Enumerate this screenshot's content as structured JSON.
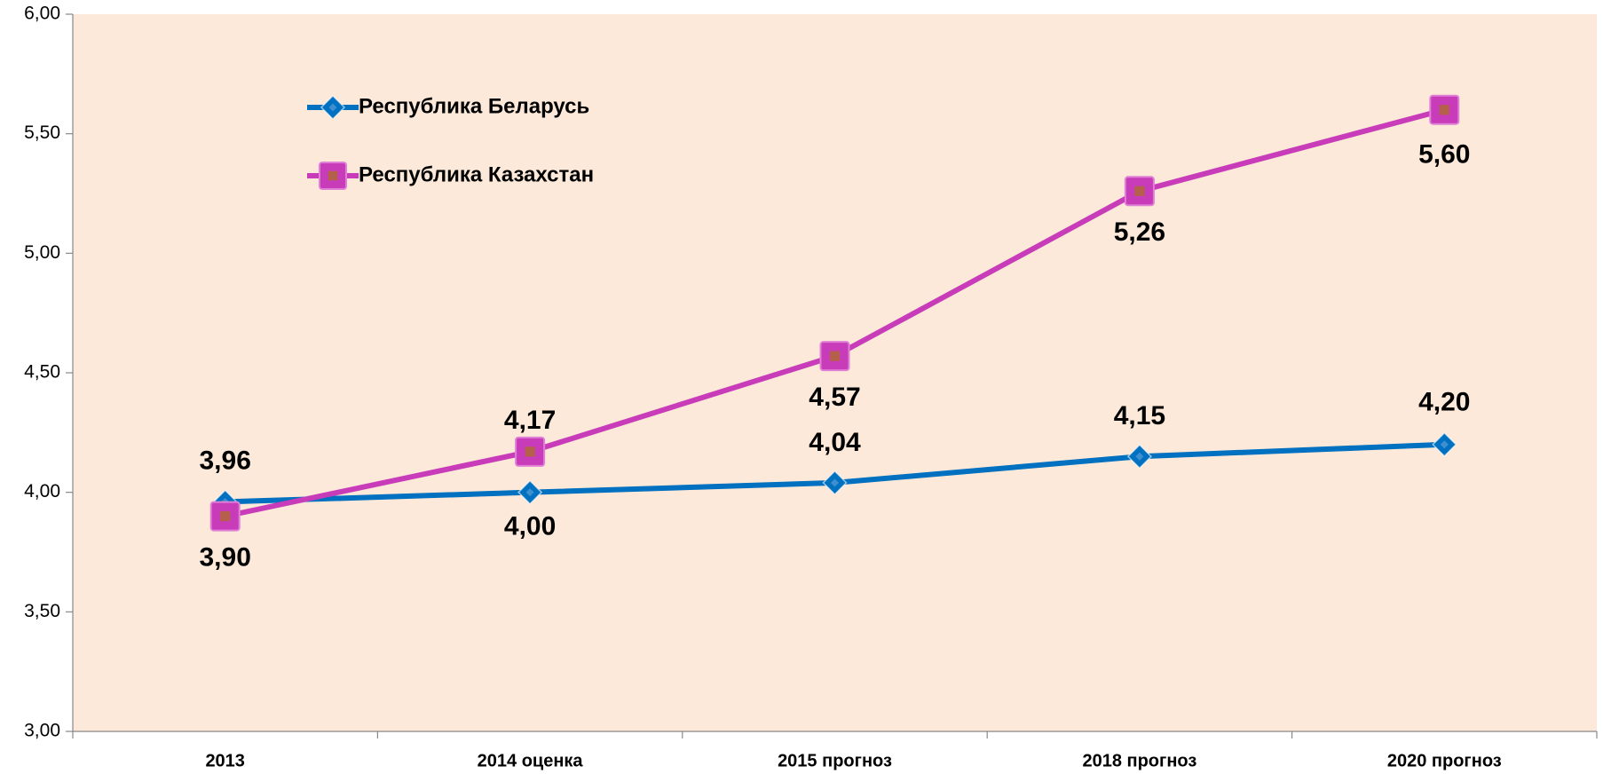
{
  "chart_data": {
    "type": "line",
    "categories": [
      "2013",
      "2014 оценка",
      "2015 прогноз",
      "2018 прогноз",
      "2020 прогноз"
    ],
    "series": [
      {
        "name": "Республика Беларусь",
        "color": "#0070c0",
        "marker": "diamond",
        "values": [
          3.96,
          4.0,
          4.04,
          4.15,
          4.2
        ],
        "value_labels": [
          "3,96",
          "4,00",
          "4,04",
          "4,15",
          "4,20"
        ]
      },
      {
        "name": "Республика Казахстан",
        "color": "#c83cb9",
        "marker": "square",
        "values": [
          3.9,
          4.17,
          4.57,
          5.26,
          5.6
        ],
        "value_labels": [
          "3,90",
          "4,17",
          "4,57",
          "5,26",
          "5,60"
        ]
      }
    ],
    "ylim": [
      3,
      6
    ],
    "yticks": [
      {
        "value": 3,
        "label": "3,00"
      },
      {
        "value": 3.5,
        "label": "3,50"
      },
      {
        "value": 4,
        "label": "4,00"
      },
      {
        "value": 4.5,
        "label": "4,50"
      },
      {
        "value": 5,
        "label": "5,00"
      },
      {
        "value": 5.5,
        "label": "5,50"
      },
      {
        "value": 6,
        "label": "6,00"
      }
    ],
    "legend": "upper left",
    "background": "#fde9d9"
  }
}
